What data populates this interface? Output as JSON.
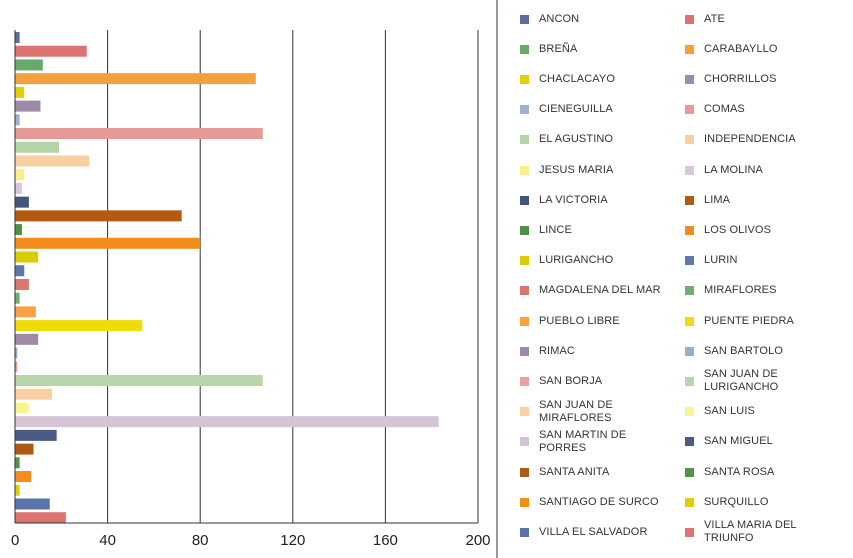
{
  "chart_data": {
    "type": "bar",
    "orientation": "horizontal",
    "title": "",
    "xlabel": "",
    "ylabel": "",
    "xlim": [
      0,
      200
    ],
    "x_ticks": [
      "0",
      "40",
      "80",
      "120",
      "160",
      "200"
    ],
    "grid": "vertical",
    "legend_position": "right",
    "categories": [
      "ANCON",
      "ATE",
      "BREÑA",
      "CARABAYLLO",
      "CHACLACAYO",
      "CHORRILLOS",
      "CIENEGUILLA",
      "COMAS",
      "EL AGUSTINO",
      "INDEPENDENCIA",
      "JESUS MARIA",
      "LA MOLINA",
      "LA VICTORIA",
      "LIMA",
      "LINCE",
      "LOS OLIVOS",
      "LURIGANCHO",
      "LURIN",
      "MAGDALENA DEL MAR",
      "MIRAFLORES",
      "PUEBLO LIBRE",
      "PUENTE PIEDRA",
      "RIMAC",
      "SAN BARTOLO",
      "SAN BORJA",
      "SAN JUAN DE LURIGANCHO",
      "SAN JUAN DE MIRAFLORES",
      "SAN LUIS",
      "SAN MARTIN DE PORRES",
      "SAN MIGUEL",
      "SANTA ANITA",
      "SANTA ROSA",
      "SANTIAGO DE SURCO",
      "SURQUILLO",
      "VILLA EL SALVADOR",
      "VILLA MARIA DEL TRIUNFO"
    ],
    "values": [
      2,
      31,
      12,
      104,
      4,
      11,
      2,
      107,
      19,
      32,
      4,
      3,
      6,
      72,
      3,
      80,
      10,
      4,
      6,
      2,
      9,
      55,
      10,
      1,
      1,
      107,
      16,
      6,
      183,
      18,
      8,
      2,
      7,
      2,
      15,
      22
    ],
    "colors": [
      "#5a6f9c",
      "#dd7370",
      "#6aa86b",
      "#f5a040",
      "#e2cf07",
      "#9d8aa6",
      "#9bb3d1",
      "#e69a94",
      "#b3d4a6",
      "#f8cfa0",
      "#fbef8c",
      "#d9c8da",
      "#41557d",
      "#b35a10",
      "#4f8f48",
      "#f58b1a",
      "#dccb06",
      "#5f78ac",
      "#dd7570",
      "#72ae70",
      "#f7a343",
      "#efdc09",
      "#9e8aa4",
      "#9aafc7",
      "#e8a09a",
      "#b9d6aa",
      "#f9d0a2",
      "#fcf394",
      "#d4c4d6",
      "#4a5c86",
      "#ad5b12",
      "#54924c",
      "#f58d1c",
      "#dfcd05",
      "#5a73a8",
      "#de7471"
    ],
    "legend": [
      [
        "ANCON",
        "ATE"
      ],
      [
        "BREÑA",
        "CARABAYLLO"
      ],
      [
        "CHACLACAYO",
        "CHORRILLOS"
      ],
      [
        "CIENEGUILLA",
        "COMAS"
      ],
      [
        "EL AGUSTINO",
        "INDEPENDENCIA"
      ],
      [
        "JESUS MARIA",
        "LA MOLINA"
      ],
      [
        "LA VICTORIA",
        "LIMA"
      ],
      [
        "LINCE",
        "LOS OLIVOS"
      ],
      [
        "LURIGANCHO",
        "LURIN"
      ],
      [
        "MAGDALENA DEL MAR",
        "MIRAFLORES"
      ],
      [
        "PUEBLO LIBRE",
        "PUENTE PIEDRA"
      ],
      [
        "RIMAC",
        "SAN BARTOLO"
      ],
      [
        "SAN BORJA",
        "SAN JUAN DE\nLURIGANCHO"
      ],
      [
        "SAN JUAN DE\nMIRAFLORES",
        "SAN LUIS"
      ],
      [
        "SAN MARTIN DE\nPORRES",
        "SAN MIGUEL"
      ],
      [
        "SANTA ANITA",
        "SANTA ROSA"
      ],
      [
        "SANTIAGO DE SURCO",
        "SURQUILLO"
      ],
      [
        "VILLA EL SALVADOR",
        "VILLA MARIA DEL\nTRIUNFO"
      ]
    ]
  }
}
